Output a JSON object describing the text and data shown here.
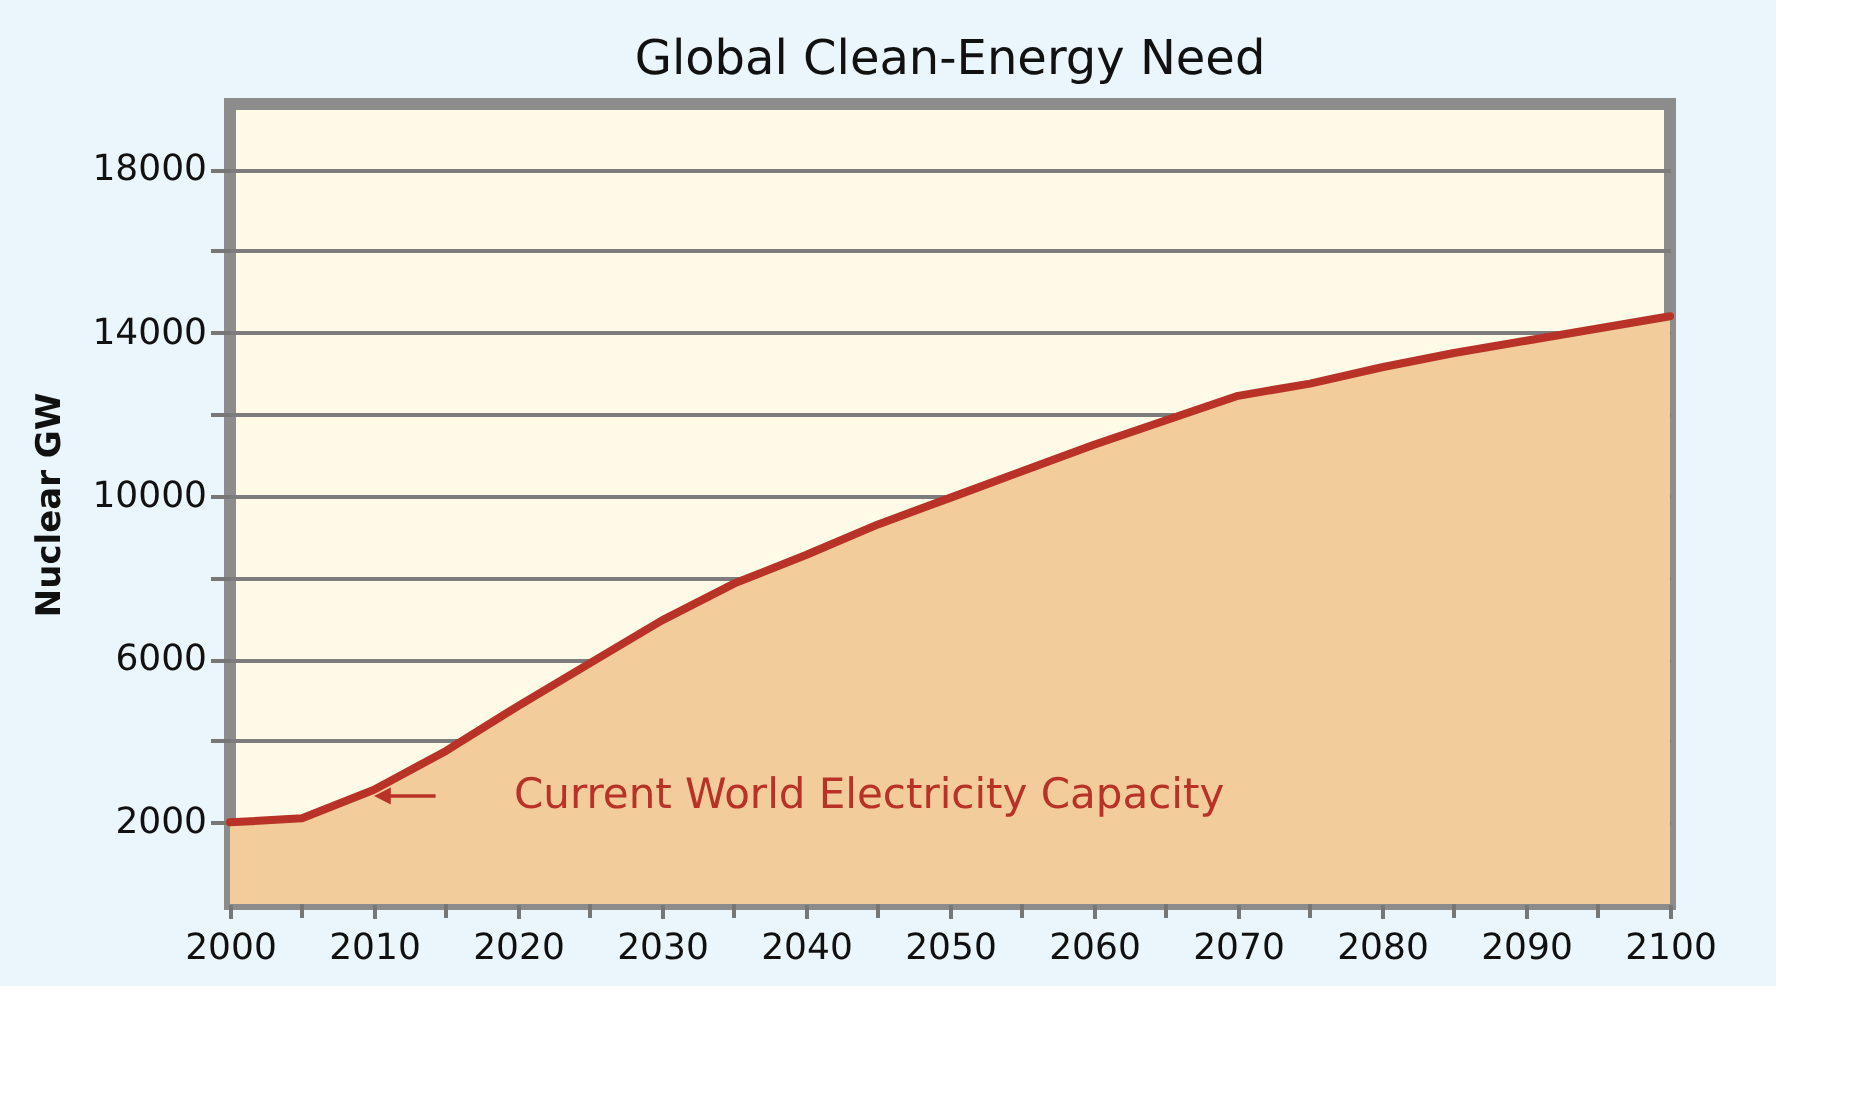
{
  "chart_data": {
    "type": "area",
    "title": "Global Clean-Energy Need",
    "ylabel": "Nuclear GW",
    "x": [
      2000,
      2005,
      2010,
      2015,
      2020,
      2025,
      2030,
      2035,
      2040,
      2045,
      2050,
      2055,
      2060,
      2065,
      2070,
      2075,
      2080,
      2085,
      2090,
      2095,
      2100
    ],
    "series": [
      {
        "color": "#b83228",
        "values": [
          2000,
          2100,
          2800,
          3750,
          4850,
          5900,
          6950,
          7850,
          8550,
          9300,
          9950,
          10600,
          11250,
          11850,
          12450,
          12750,
          13150,
          13500,
          13800,
          14100,
          14400
        ]
      }
    ],
    "xlim": [
      2000,
      2100
    ],
    "xticks": [
      2000,
      {
        "value": 2005,
        "label": null
      },
      2010,
      {
        "value": 2015,
        "label": null
      },
      2020,
      {
        "value": 2025,
        "label": null
      },
      2030,
      {
        "value": 2035,
        "label": null
      },
      2040,
      {
        "value": 2045,
        "label": null
      },
      2050,
      {
        "value": 2055,
        "label": null
      },
      2060,
      {
        "value": 2065,
        "label": null
      },
      2070,
      {
        "value": 2075,
        "label": null
      },
      2080,
      {
        "value": 2085,
        "label": null
      },
      2090,
      {
        "value": 2095,
        "label": null
      },
      2100
    ],
    "ylim": [
      0,
      19600
    ],
    "yticks": [
      2000,
      {
        "value": 4000,
        "label": null
      },
      6000,
      {
        "value": 8000,
        "label": null
      },
      10000,
      {
        "value": 12000,
        "label": null
      },
      14000,
      {
        "value": 16000,
        "label": null
      },
      18000
    ],
    "grid": "y",
    "annotations": [
      "Current World Electricity Capacity"
    ]
  }
}
